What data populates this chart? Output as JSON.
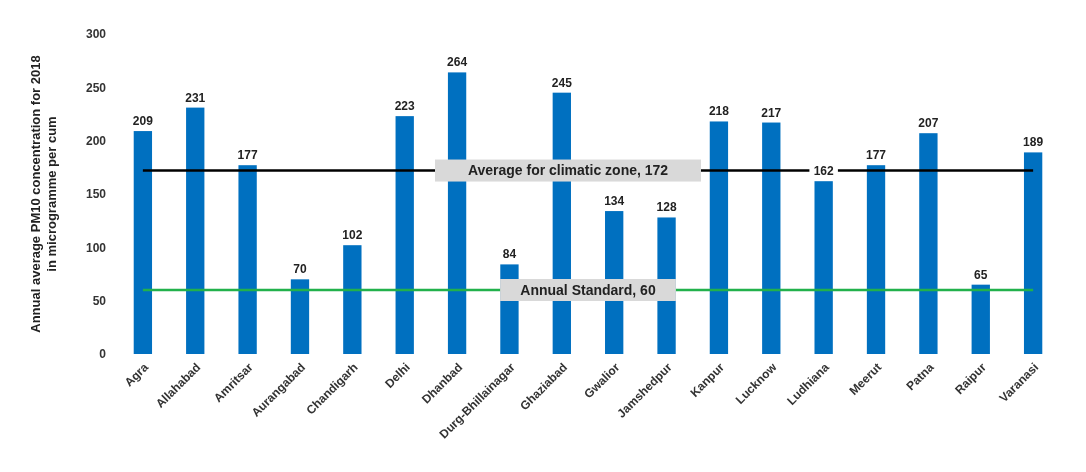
{
  "chart_data": {
    "type": "bar",
    "ylabel": "Annual average PM10 concentration for 2018\nin microgramme per cum",
    "categories": [
      "Agra",
      "Allahabad",
      "Amritsar",
      "Aurangabad",
      "Chandigarh",
      "Delhi",
      "Dhanbad",
      "Durg-Bhillainagar",
      "Ghaziabad",
      "Gwalior",
      "Jamshedpur",
      "Kanpur",
      "Lucknow",
      "Ludhiana",
      "Meerut",
      "Patna",
      "Raipur",
      "Varanasi"
    ],
    "values": [
      209,
      231,
      177,
      70,
      102,
      223,
      264,
      84,
      245,
      134,
      128,
      218,
      217,
      162,
      177,
      207,
      65,
      189
    ],
    "color": "#0070c0",
    "ylim": [
      0,
      300
    ],
    "yticks": [
      0,
      50,
      100,
      150,
      200,
      250,
      300
    ],
    "grid": false,
    "data_labels": true,
    "ref_lines": [
      {
        "axis": "y",
        "value": 172,
        "label": "Average for climatic zone, 172",
        "color": "#000000"
      },
      {
        "axis": "y",
        "value": 60,
        "label": "Annual Standard, 60",
        "color": "#22b14c"
      }
    ]
  }
}
